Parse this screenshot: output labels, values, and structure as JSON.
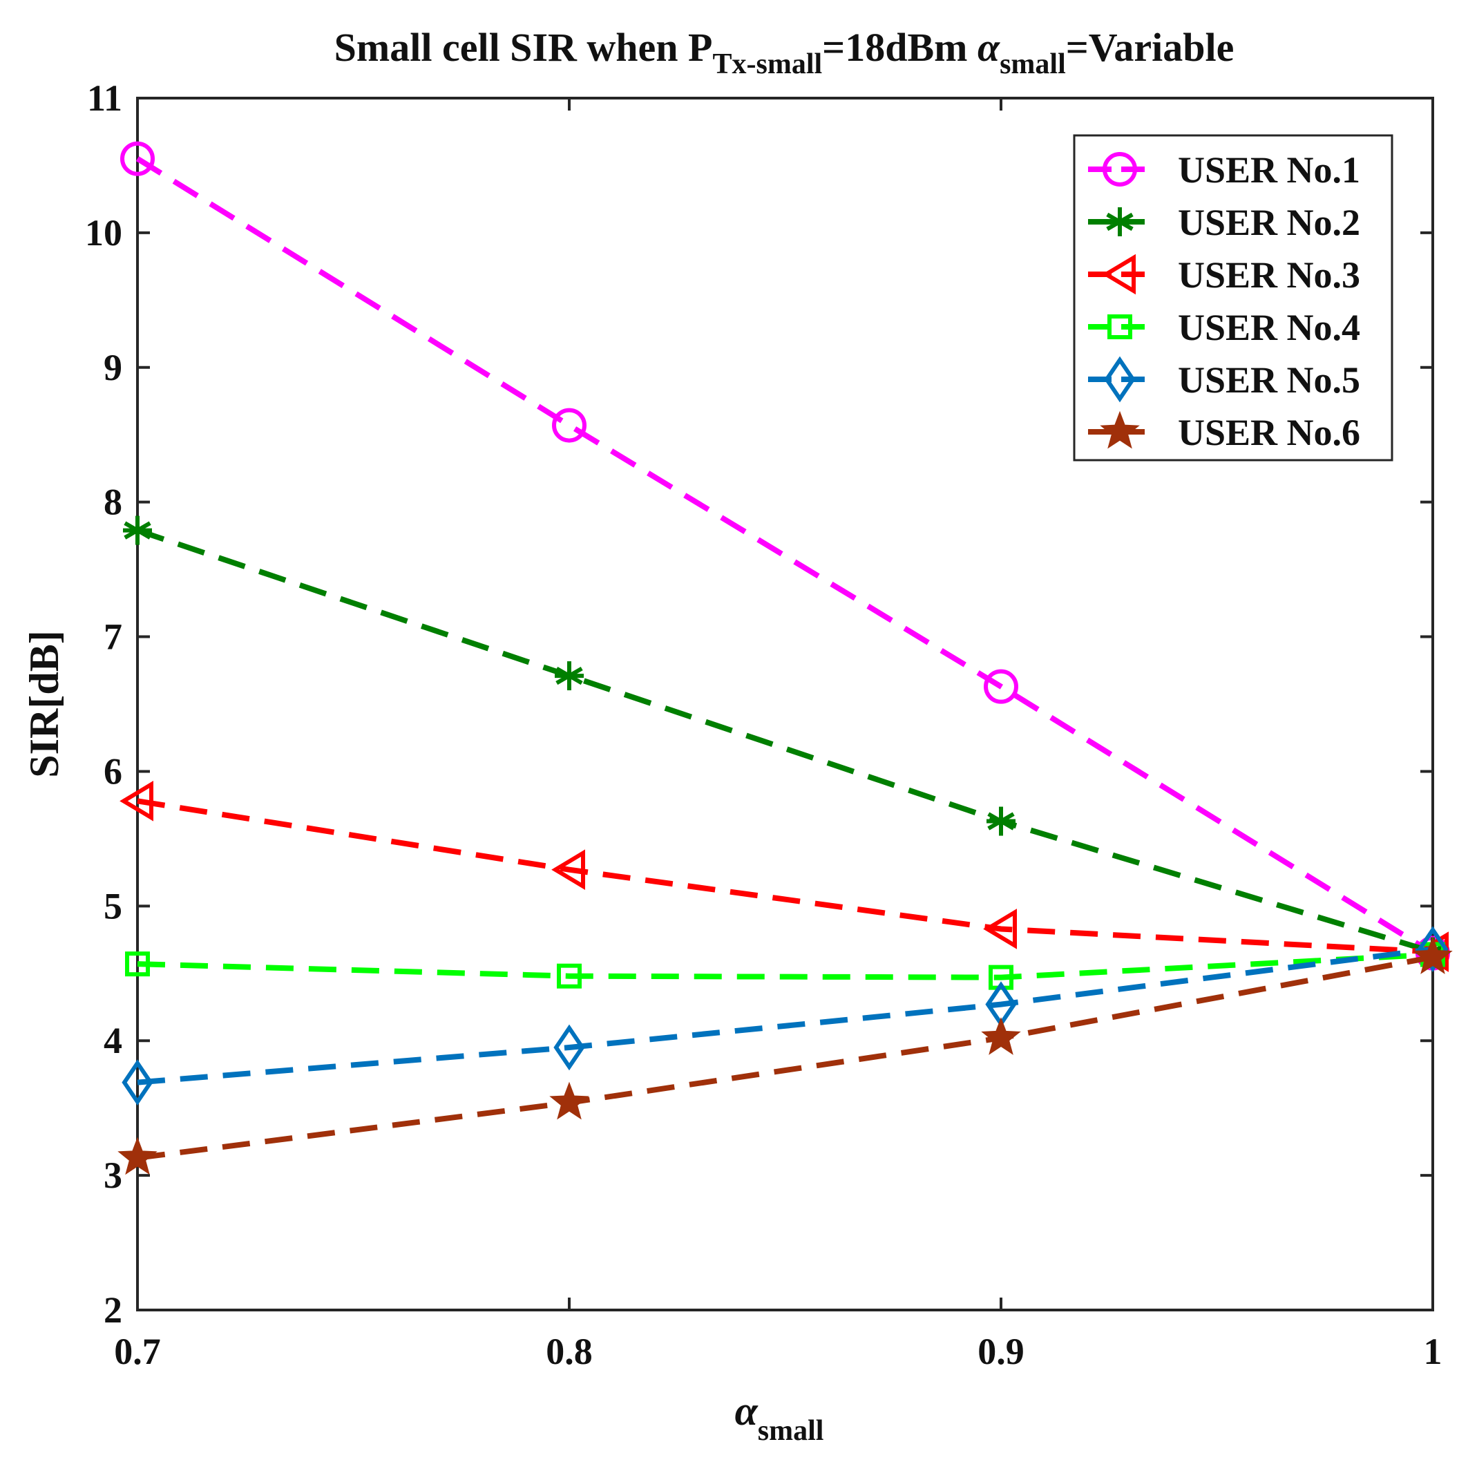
{
  "chart_data": {
    "type": "line",
    "title": {
      "part1": "Small cell  SIR  when P",
      "sub1": "Tx-small",
      "part2": "=18dBm ",
      "alpha": "α",
      "sub2": "small",
      "part3": "=Variable"
    },
    "xlabel": {
      "symbol": "α",
      "sub": "small"
    },
    "ylabel": "SIR[dB]",
    "xlim": [
      0.7,
      1.0
    ],
    "ylim": [
      2,
      11
    ],
    "x": [
      0.7,
      0.8,
      0.9,
      1.0
    ],
    "xticks": [
      0.7,
      0.8,
      0.9,
      1.0
    ],
    "xtick_labels": [
      "0.7",
      "0.8",
      "0.9",
      "1"
    ],
    "yticks": [
      2,
      3,
      4,
      5,
      6,
      7,
      8,
      9,
      10,
      11
    ],
    "ytick_labels": [
      "2",
      "3",
      "4",
      "5",
      "6",
      "7",
      "8",
      "9",
      "10",
      "11"
    ],
    "legend_position": "top-right",
    "grid": false,
    "series": [
      {
        "name": "USER No.1",
        "values": [
          10.55,
          8.57,
          6.63,
          4.65
        ],
        "color": "#ff00ff",
        "marker": "circle"
      },
      {
        "name": "USER No.2",
        "values": [
          7.79,
          6.71,
          5.63,
          4.66
        ],
        "color": "#007f00",
        "marker": "asterisk"
      },
      {
        "name": "USER No.3",
        "values": [
          5.78,
          5.27,
          4.83,
          4.66
        ],
        "color": "#ff0000",
        "marker": "triangle-left"
      },
      {
        "name": "USER No.4",
        "values": [
          4.57,
          4.48,
          4.47,
          4.64
        ],
        "color": "#00ff00",
        "marker": "square"
      },
      {
        "name": "USER No.5",
        "values": [
          3.69,
          3.95,
          4.27,
          4.68
        ],
        "color": "#0072bd",
        "marker": "diamond"
      },
      {
        "name": "USER No.6",
        "values": [
          3.13,
          3.54,
          4.02,
          4.62
        ],
        "color": "#a0300a",
        "marker": "star"
      }
    ]
  }
}
